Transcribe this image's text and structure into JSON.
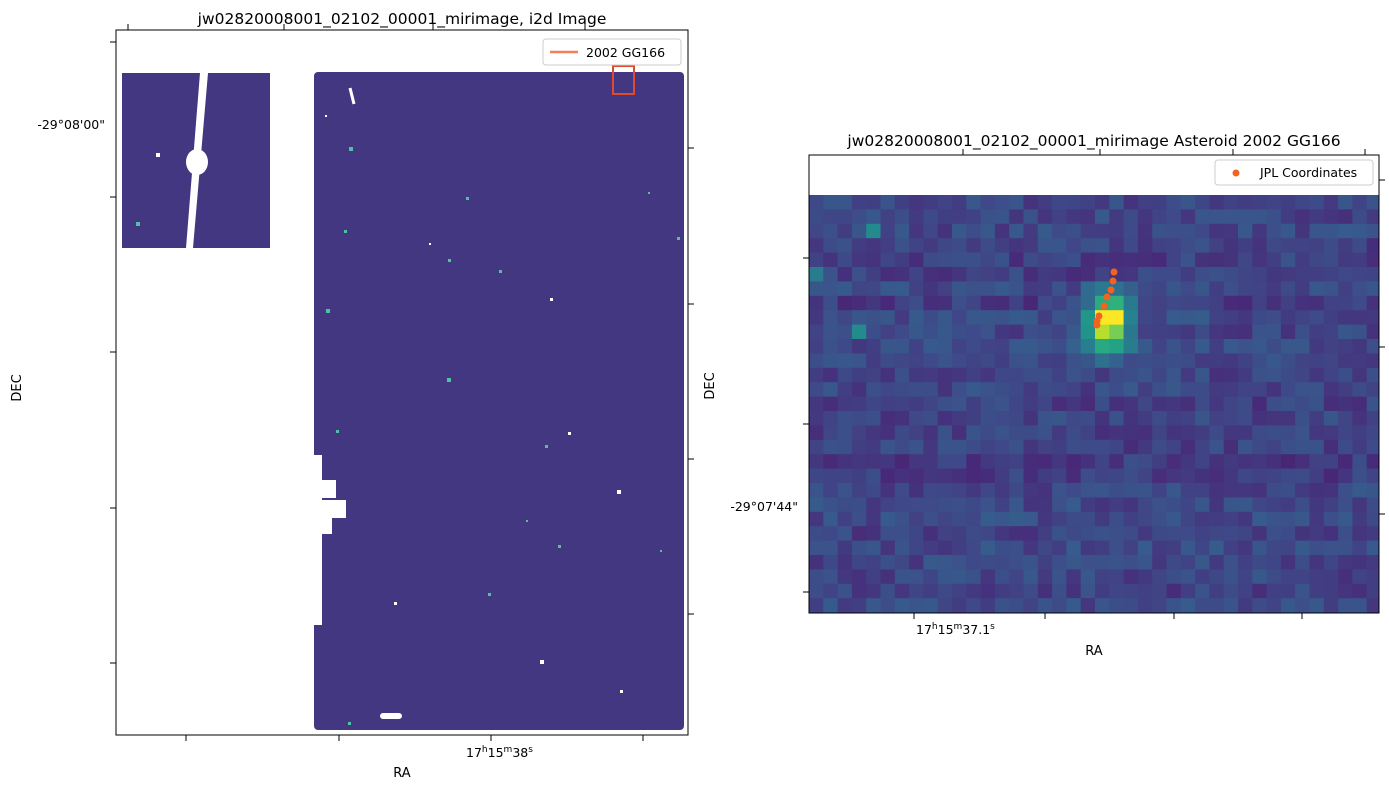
{
  "colors": {
    "background_pixel": "#423780",
    "mask": "#ffffff",
    "legend_line": "#f47f5a",
    "footprint_box": "#e04a2e",
    "jpl_points": "#f26322"
  },
  "chart_data": [
    {
      "type": "heatmap",
      "title": "jw02820008001_02102_00001_mirimage,  i2d Image",
      "xlabel": "RA",
      "ylabel": "DEC",
      "x_tick_label": "17h15m38s",
      "y_tick_label": "-29°08'00\"",
      "colormap": "viridis",
      "grid": false,
      "legend": {
        "placement": "upper-right",
        "entries": [
          "2002 GG166"
        ]
      },
      "annotations": [
        "2002 GG166 search box drawn near the upper-right corner of the detector footprint"
      ]
    },
    {
      "type": "heatmap",
      "title": "jw02820008001_02102_00001_mirimage Asteroid 2002 GG166",
      "xlabel": "RA",
      "ylabel": "DEC",
      "x_tick_label": "17h15m37.1s",
      "y_tick_label": "-29°07'44\"",
      "colormap": "viridis",
      "grid": false,
      "legend": {
        "placement": "upper-right",
        "entries": [
          "JPL Coordinates"
        ]
      },
      "jpl_points_count": 8
    }
  ],
  "labels": {
    "left_title": "jw02820008001_02102_00001_mirimage,  i2d Image",
    "right_title": "jw02820008001_02102_00001_mirimage Asteroid 2002 GG166",
    "left_xlabel": "RA",
    "left_ylabel": "DEC",
    "right_xlabel": "RA",
    "right_ylabel": "DEC",
    "left_ytick": "-29°08'00\"",
    "right_ytick": "-29°07'44\"",
    "left_xtick_main": "17",
    "left_xtick_h": "h",
    "left_xtick_m_val": "15",
    "left_xtick_m": "m",
    "left_xtick_s_val": "38",
    "left_xtick_s": "s",
    "right_xtick_main": "17",
    "right_xtick_h": "h",
    "right_xtick_m_val": "15",
    "right_xtick_m": "m",
    "right_xtick_s_val": "37.1",
    "right_xtick_s": "s",
    "left_legend": "2002 GG166",
    "right_legend": "JPL Coordinates"
  }
}
